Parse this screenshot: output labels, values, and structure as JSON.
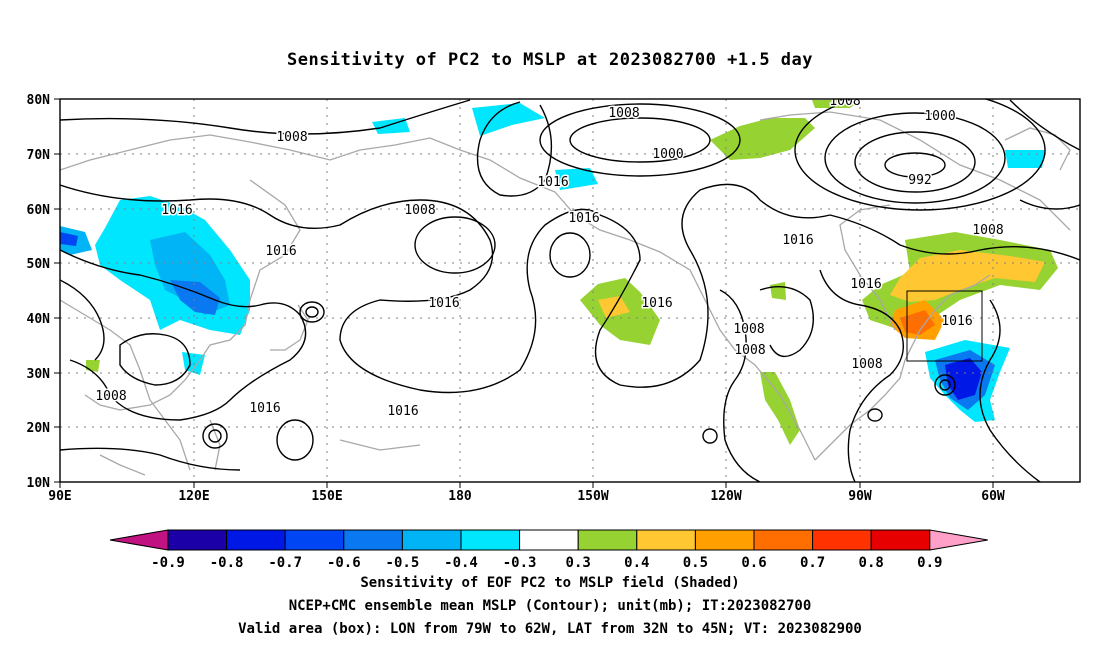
{
  "title": "Sensitivity of PC2 to MSLP at 2023082700 +1.5 day",
  "map": {
    "lat_ticks": [
      "80N",
      "70N",
      "60N",
      "50N",
      "40N",
      "30N",
      "20N",
      "10N"
    ],
    "lon_ticks": [
      "90E",
      "120E",
      "150E",
      "180",
      "150W",
      "120W",
      "90W",
      "60W"
    ],
    "contour_labels": [
      "1008",
      "1008",
      "1000",
      "1008",
      "1000",
      "992",
      "1016",
      "1008",
      "1016",
      "1016",
      "1016",
      "1008",
      "1016",
      "1016",
      "1016",
      "1016",
      "1008",
      "1016",
      "1016",
      "1008",
      "1008",
      "1008",
      "1016"
    ],
    "box": {
      "lon_from": "79W",
      "lon_to": "62W",
      "lat_from": "32N",
      "lat_to": "45N"
    }
  },
  "colorbar": {
    "labels": [
      "-0.9",
      "-0.8",
      "-0.7",
      "-0.6",
      "-0.5",
      "-0.4",
      "-0.3",
      "0.3",
      "0.4",
      "0.5",
      "0.6",
      "0.7",
      "0.8",
      "0.9"
    ],
    "colors": [
      "#1a00a6",
      "#0018e6",
      "#0046f5",
      "#0a78f0",
      "#00b4f5",
      "#00e6ff",
      "#ffffff",
      "#96d232",
      "#ffc832",
      "#ffa000",
      "#ff6e00",
      "#ff3200",
      "#e60000"
    ],
    "left_tip_color": "#c01280",
    "right_tip_color": "#ffa0c8"
  },
  "captions": [
    "Sensitivity of EOF PC2 to MSLP field (Shaded)",
    "NCEP+CMC ensemble mean MSLP (Contour); unit(mb); IT:2023082700",
    "Valid area (box): LON from 79W to 62W, LAT from 32N to 45N; VT: 2023082900"
  ]
}
